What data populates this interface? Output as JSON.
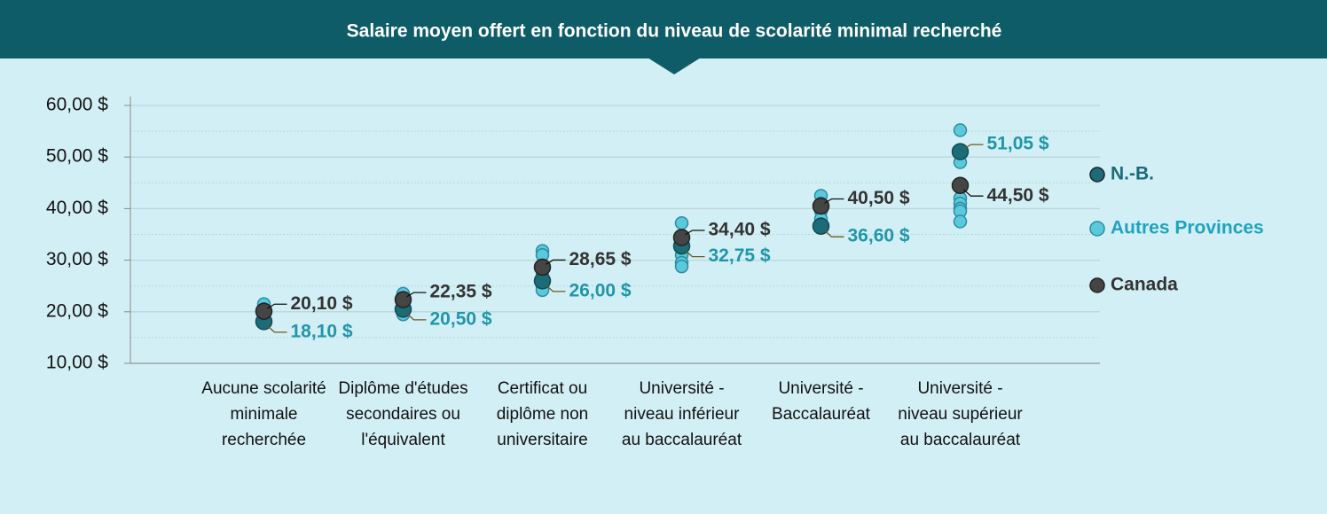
{
  "chart_data": {
    "type": "strip",
    "title": "Salaire moyen offert en fonction du niveau de scolarité minimal recherché",
    "categories": [
      "Aucune scolarité minimale recherchée",
      "Diplôme d'études secondaires ou l'équivalent",
      "Certificat ou diplôme non universitaire",
      "Université - niveau inférieur au baccalauréat",
      "Université - Baccalauréat",
      "Université - niveau supérieur au baccalauréat"
    ],
    "series": [
      {
        "name": "N.-B.",
        "color": "#1b6b78",
        "values": [
          18.1,
          20.5,
          26.0,
          32.75,
          36.6,
          51.05
        ],
        "value_labels": [
          "18,10 $",
          "20,50 $",
          "26,00 $",
          "32,75 $",
          "36,60 $",
          "51,05 $"
        ]
      },
      {
        "name": "Autres Provinces",
        "color": "#5cc8dc",
        "values": [
          [
            21.5,
            20.5,
            19.5,
            18.5
          ],
          [
            23.5,
            22.5,
            21,
            20,
            19.5
          ],
          [
            31.8,
            31,
            27,
            26,
            25,
            24.2
          ],
          [
            37.2,
            34,
            33,
            31,
            29.5,
            28.8
          ],
          [
            42.5,
            41,
            39.5,
            38,
            37,
            36.5
          ],
          [
            55.2,
            49,
            42,
            41,
            40,
            39.5,
            37.5
          ]
        ]
      },
      {
        "name": "Canada",
        "color": "#454545",
        "values": [
          20.1,
          22.35,
          28.65,
          34.4,
          40.5,
          44.5
        ],
        "value_labels": [
          "20,10 $",
          "22,35 $",
          "28,65 $",
          "34,40 $",
          "40,50 $",
          "44,50 $"
        ]
      }
    ],
    "ylim": [
      10,
      60
    ],
    "yticks": [
      {
        "value": 10,
        "label": "10,00 $"
      },
      {
        "value": 20,
        "label": "20,00 $"
      },
      {
        "value": 30,
        "label": "30,00 $"
      },
      {
        "value": 40,
        "label": "40,00 $"
      },
      {
        "value": 50,
        "label": "50,00 $"
      },
      {
        "value": 60,
        "label": "60,00 $"
      }
    ],
    "yminorticks": [
      15,
      25,
      35,
      45,
      55
    ],
    "grid": true,
    "legend": "right"
  }
}
